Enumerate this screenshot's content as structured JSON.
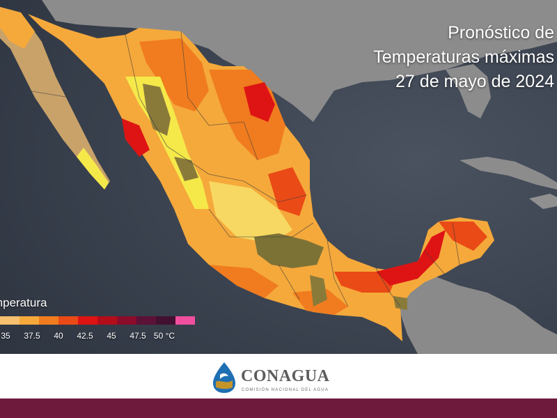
{
  "title": {
    "line1": "Pronóstico de",
    "line2": "Temperaturas máximas",
    "line3": "27 de mayo de 2024"
  },
  "legend": {
    "title": "Temperatura",
    "unit": "°C",
    "labels": [
      "35",
      "37.5",
      "40",
      "42.5",
      "45",
      "47.5",
      "50 °C"
    ],
    "colors": [
      "#f7c06e",
      "#f5a93b",
      "#f07c1f",
      "#ea4a16",
      "#de1414",
      "#b30d1a",
      "#8a0c2a",
      "#5c1137",
      "#421030",
      "#f04fa0"
    ]
  },
  "logo": {
    "name": "CONAGUA",
    "subtitle": "COMISIÓN NACIONAL DEL AGUA"
  },
  "colors": {
    "ocean": "#3b4350",
    "land_gray": "#8a8a8a",
    "brand_band": "#6d1a3d"
  }
}
